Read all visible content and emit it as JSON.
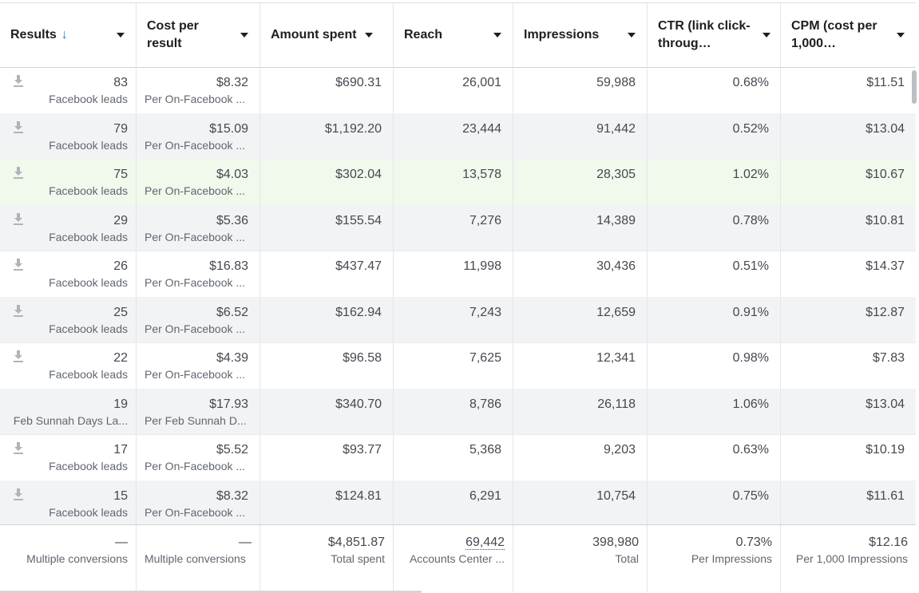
{
  "columns": [
    {
      "label": "Results",
      "sort": "↓"
    },
    {
      "label": "Cost per result"
    },
    {
      "label": "Amount spent"
    },
    {
      "label": "Reach"
    },
    {
      "label": "Impressions"
    },
    {
      "label": "CTR (link click-throug…"
    },
    {
      "label": "CPM (cost per 1,000…"
    }
  ],
  "rows": [
    {
      "results": "83",
      "results_sub": "Facebook leads",
      "cpr": "$8.32",
      "cpr_sub": "Per On-Facebook ...",
      "spent": "$690.31",
      "reach": "26,001",
      "impressions": "59,988",
      "ctr": "0.68%",
      "cpm": "$11.51",
      "download": true
    },
    {
      "results": "79",
      "results_sub": "Facebook leads",
      "cpr": "$15.09",
      "cpr_sub": "Per On-Facebook ...",
      "spent": "$1,192.20",
      "reach": "23,444",
      "impressions": "91,442",
      "ctr": "0.52%",
      "cpm": "$13.04",
      "download": true
    },
    {
      "results": "75",
      "results_sub": "Facebook leads",
      "cpr": "$4.03",
      "cpr_sub": "Per On-Facebook ...",
      "spent": "$302.04",
      "reach": "13,578",
      "impressions": "28,305",
      "ctr": "1.02%",
      "cpm": "$10.67",
      "download": true
    },
    {
      "results": "29",
      "results_sub": "Facebook leads",
      "cpr": "$5.36",
      "cpr_sub": "Per On-Facebook ...",
      "spent": "$155.54",
      "reach": "7,276",
      "impressions": "14,389",
      "ctr": "0.78%",
      "cpm": "$10.81",
      "download": true
    },
    {
      "results": "26",
      "results_sub": "Facebook leads",
      "cpr": "$16.83",
      "cpr_sub": "Per On-Facebook ...",
      "spent": "$437.47",
      "reach": "11,998",
      "impressions": "30,436",
      "ctr": "0.51%",
      "cpm": "$14.37",
      "download": true
    },
    {
      "results": "25",
      "results_sub": "Facebook leads",
      "cpr": "$6.52",
      "cpr_sub": "Per On-Facebook ...",
      "spent": "$162.94",
      "reach": "7,243",
      "impressions": "12,659",
      "ctr": "0.91%",
      "cpm": "$12.87",
      "download": true
    },
    {
      "results": "22",
      "results_sub": "Facebook leads",
      "cpr": "$4.39",
      "cpr_sub": "Per On-Facebook ...",
      "spent": "$96.58",
      "reach": "7,625",
      "impressions": "12,341",
      "ctr": "0.98%",
      "cpm": "$7.83",
      "download": true
    },
    {
      "results": "19",
      "results_sub": "Feb Sunnah Days La...",
      "cpr": "$17.93",
      "cpr_sub": "Per Feb Sunnah D...",
      "spent": "$340.70",
      "reach": "8,786",
      "impressions": "26,118",
      "ctr": "1.06%",
      "cpm": "$13.04",
      "download": false
    },
    {
      "results": "17",
      "results_sub": "Facebook leads",
      "cpr": "$5.52",
      "cpr_sub": "Per On-Facebook ...",
      "spent": "$93.77",
      "reach": "5,368",
      "impressions": "9,203",
      "ctr": "0.63%",
      "cpm": "$10.19",
      "download": true
    },
    {
      "results": "15",
      "results_sub": "Facebook leads",
      "cpr": "$8.32",
      "cpr_sub": "Per On-Facebook ...",
      "spent": "$124.81",
      "reach": "6,291",
      "impressions": "10,754",
      "ctr": "0.75%",
      "cpm": "$11.61",
      "download": true
    }
  ],
  "totals": {
    "results": "—",
    "results_sub": "Multiple conversions",
    "cpr": "—",
    "cpr_sub": "Multiple conversions",
    "spent": "$4,851.87",
    "spent_sub": "Total spent",
    "reach": "69,442",
    "reach_sub": "Accounts Center ...",
    "impressions": "398,980",
    "impressions_sub": "Total",
    "ctr": "0.73%",
    "ctr_sub": "Per Impressions",
    "cpm": "$12.16",
    "cpm_sub": "Per 1,000 Impressions"
  },
  "colors": {
    "accent": "#1877f2",
    "highlight_row": "#f1f8ec",
    "alt_row": "#f2f3f5"
  },
  "icons": {
    "download": "download-icon",
    "caret": "caret-down-icon"
  }
}
